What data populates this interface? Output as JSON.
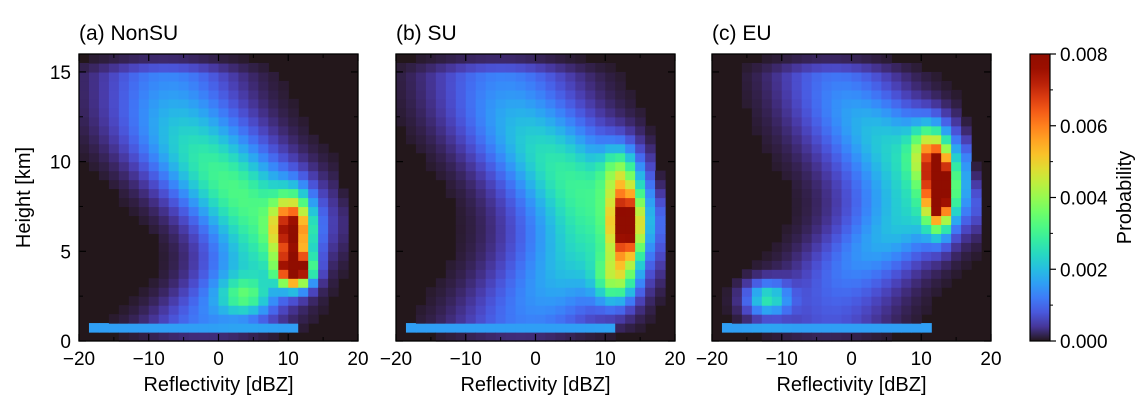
{
  "chart_data": [
    {
      "type": "heatmap",
      "title": "(a) NonSU",
      "xlabel": "Reflectivity [dBZ]",
      "ylabel": "Height [km]",
      "xlim": [
        -20,
        20
      ],
      "ylim": [
        0,
        16
      ],
      "xticks": [
        -20,
        -10,
        0,
        10,
        20
      ],
      "yticks": [
        0,
        5,
        10,
        15
      ],
      "blobs": [
        {
          "x": 11,
          "y": 4.0,
          "sx": 2.2,
          "sy": 0.9,
          "v": 0.0085
        },
        {
          "x": 10.5,
          "y": 6.2,
          "sx": 2.6,
          "sy": 1.8,
          "v": 0.0062
        },
        {
          "x": 4,
          "y": 2.5,
          "sx": 3.5,
          "sy": 1.0,
          "v": 0.0018
        }
      ]
    },
    {
      "type": "heatmap",
      "title": "(b) SU",
      "xlabel": "Reflectivity [dBZ]",
      "ylabel": "",
      "xlim": [
        -20,
        20
      ],
      "ylim": [
        0,
        16
      ],
      "xticks": [
        -20,
        -10,
        0,
        10,
        20
      ],
      "yticks": [
        0,
        5,
        10,
        15
      ],
      "blobs": [
        {
          "x": 13,
          "y": 6.5,
          "sx": 2.2,
          "sy": 2.0,
          "v": 0.007
        },
        {
          "x": 11.5,
          "y": 3.5,
          "sx": 2.8,
          "sy": 1.4,
          "v": 0.003
        },
        {
          "x": 12,
          "y": 9.5,
          "sx": 2.5,
          "sy": 1.5,
          "v": 0.0022
        }
      ]
    },
    {
      "type": "heatmap",
      "title": "(c) EU",
      "xlabel": "Reflectivity [dBZ]",
      "ylabel": "",
      "xlim": [
        -20,
        20
      ],
      "ylim": [
        0,
        16
      ],
      "xticks": [
        -20,
        -10,
        0,
        10,
        20
      ],
      "yticks": [
        0,
        5,
        10,
        15
      ],
      "blobs": [
        {
          "x": 12.5,
          "y": 8.5,
          "sx": 1.8,
          "sy": 1.9,
          "v": 0.009
        },
        {
          "x": 11,
          "y": 10.5,
          "sx": 2.4,
          "sy": 1.6,
          "v": 0.003
        },
        {
          "x": -12,
          "y": 2.4,
          "sx": 3.0,
          "sy": 0.9,
          "v": 0.0025
        }
      ]
    }
  ],
  "colorbar": {
    "label": "Probability",
    "colormap": "turbo",
    "min": 0.0,
    "max": 0.008,
    "ticks": [
      "0.000",
      "0.002",
      "0.004",
      "0.006",
      "0.008"
    ]
  }
}
